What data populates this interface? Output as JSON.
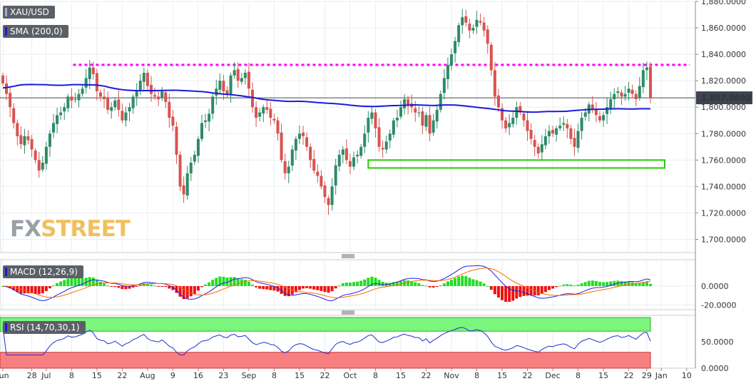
{
  "symbol": "XAU/USD",
  "indicators": {
    "sma": "SMA (200,0)",
    "macd": "MACD (12,26,9)",
    "rsi": "RSI (14,70,30,1)"
  },
  "watermark": {
    "fx": "FX",
    "street": "STREET"
  },
  "colors": {
    "bull": "#2e8b66",
    "bear": "#d9534f",
    "sma": "#1a1adc",
    "resistance": "#ff00ff",
    "support_box": "#22cc00",
    "macd_line": "#2020e0",
    "signal_line": "#ff6a00",
    "hist_pos": "#22dd22",
    "hist_neg": "#ee1111",
    "rsi_line": "#2030d0",
    "overbought": "#7cf57c",
    "oversold": "#f77f7f"
  },
  "chart_data": [
    {
      "type": "candlestick",
      "title": "XAU/USD",
      "ylim": [
        1690,
        1880
      ],
      "y_ticks": [
        "1,880.0000",
        "1,860.0000",
        "1,840.0000",
        "1,820.0000",
        "1,800.0000",
        "1,780.0000",
        "1,760.0000",
        "1,740.0000",
        "1,720.0000",
        "1,700.0000"
      ],
      "y_tick_values": [
        1880,
        1860,
        1840,
        1820,
        1800,
        1780,
        1760,
        1740,
        1720,
        1700
      ],
      "last_price": 1807.08,
      "last_price_label": "1,807.0800",
      "resistance_level": 1832,
      "support_zone": {
        "start": "Oct 4",
        "end": "Jan 1",
        "low": 1754,
        "high": 1760
      },
      "closes": [
        1818,
        1810,
        1800,
        1788,
        1778,
        1772,
        1778,
        1775,
        1768,
        1760,
        1752,
        1758,
        1770,
        1780,
        1788,
        1794,
        1796,
        1800,
        1808,
        1805,
        1806,
        1810,
        1814,
        1822,
        1830,
        1825,
        1812,
        1808,
        1806,
        1798,
        1800,
        1805,
        1798,
        1790,
        1796,
        1800,
        1808,
        1812,
        1820,
        1826,
        1816,
        1810,
        1808,
        1806,
        1812,
        1804,
        1792,
        1786,
        1764,
        1740,
        1734,
        1750,
        1758,
        1764,
        1776,
        1788,
        1790,
        1795,
        1808,
        1814,
        1820,
        1812,
        1810,
        1824,
        1828,
        1820,
        1822,
        1826,
        1814,
        1800,
        1792,
        1796,
        1800,
        1798,
        1792,
        1790,
        1780,
        1760,
        1750,
        1755,
        1768,
        1776,
        1780,
        1778,
        1770,
        1760,
        1752,
        1748,
        1740,
        1732,
        1726,
        1740,
        1756,
        1764,
        1768,
        1760,
        1755,
        1762,
        1764,
        1770,
        1780,
        1792,
        1796,
        1784,
        1770,
        1768,
        1774,
        1780,
        1790,
        1792,
        1800,
        1806,
        1802,
        1800,
        1796,
        1796,
        1786,
        1794,
        1780,
        1790,
        1798,
        1810,
        1822,
        1832,
        1840,
        1850,
        1862,
        1868,
        1864,
        1858,
        1860,
        1866,
        1864,
        1858,
        1848,
        1828,
        1808,
        1800,
        1790,
        1784,
        1788,
        1792,
        1800,
        1796,
        1790,
        1782,
        1776,
        1770,
        1765,
        1772,
        1778,
        1782,
        1780,
        1784,
        1786,
        1788,
        1784,
        1776,
        1770,
        1782,
        1792,
        1796,
        1802,
        1798,
        1794,
        1790,
        1794,
        1800,
        1806,
        1810,
        1812,
        1808,
        1810,
        1814,
        1810,
        1806,
        1816,
        1828,
        1830,
        1807
      ],
      "x_labels": [
        {
          "label": "Jun",
          "index": 0
        },
        {
          "label": "28",
          "index": 8
        },
        {
          "label": "Jul",
          "index": 12
        },
        {
          "label": "8",
          "index": 19
        },
        {
          "label": "15",
          "index": 26
        },
        {
          "label": "22",
          "index": 33
        },
        {
          "label": "Aug",
          "index": 40
        },
        {
          "label": "9",
          "index": 47
        },
        {
          "label": "16",
          "index": 54
        },
        {
          "label": "23",
          "index": 61
        },
        {
          "label": "Sep",
          "index": 68
        },
        {
          "label": "8",
          "index": 75
        },
        {
          "label": "15",
          "index": 82
        },
        {
          "label": "22",
          "index": 89
        },
        {
          "label": "Oct",
          "index": 96
        },
        {
          "label": "8",
          "index": 103
        },
        {
          "label": "15",
          "index": 110
        },
        {
          "label": "22",
          "index": 117
        },
        {
          "label": "Nov",
          "index": 124
        },
        {
          "label": "8",
          "index": 131
        },
        {
          "label": "15",
          "index": 138
        },
        {
          "label": "22",
          "index": 145
        },
        {
          "label": "Dec",
          "index": 152
        },
        {
          "label": "8",
          "index": 159
        },
        {
          "label": "15",
          "index": 166
        },
        {
          "label": "22",
          "index": 173
        },
        {
          "label": "29",
          "index": 178
        },
        {
          "label": "Jan",
          "index": 182
        },
        {
          "label": "10",
          "index": 189
        }
      ]
    },
    {
      "type": "macd",
      "title": "MACD (12,26,9)",
      "ylim": [
        -25,
        28
      ],
      "y_ticks": [
        "0.0000",
        "-20.0000"
      ],
      "y_tick_values": [
        0,
        -20
      ]
    },
    {
      "type": "rsi",
      "title": "RSI (14,70,30,1)",
      "ylim": [
        0,
        100
      ],
      "y_ticks": [
        "50.0000",
        "0.0000"
      ],
      "y_tick_values": [
        50,
        0
      ],
      "overbought": 70,
      "oversold": 30
    }
  ]
}
